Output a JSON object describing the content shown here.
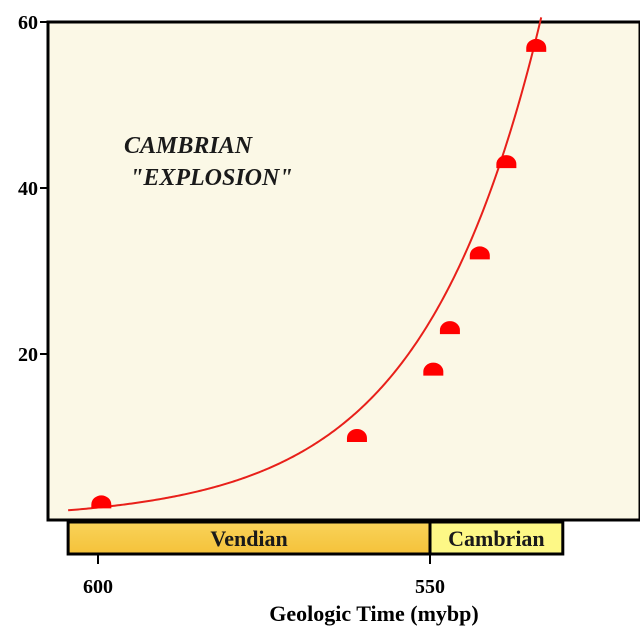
{
  "chart_data": {
    "type": "scatter",
    "title": "",
    "annotation": [
      "CAMBRIAN",
      "\"EXPLOSION\""
    ],
    "xlabel": "Geologic Time (mybp)",
    "ylabel": "",
    "x_reversed": true,
    "xlim": [
      604.5,
      530
    ],
    "ylim": [
      0,
      60
    ],
    "x_ticks": [
      600,
      550
    ],
    "x_tick_labels": [
      "600",
      "550"
    ],
    "y_ticks": [
      20,
      40,
      60
    ],
    "y_tick_labels": [
      "20",
      "40",
      "60"
    ],
    "grid": false,
    "legend": "none",
    "points": [
      {
        "x": 599.5,
        "y": 2
      },
      {
        "x": 561,
        "y": 10
      },
      {
        "x": 549.5,
        "y": 18
      },
      {
        "x": 547,
        "y": 23
      },
      {
        "x": 542.5,
        "y": 32
      },
      {
        "x": 538.5,
        "y": 43
      },
      {
        "x": 534,
        "y": 57
      }
    ],
    "trend_curve": "exponential fit",
    "periods": [
      {
        "label": "Vendian",
        "start": 604.5,
        "end": 550
      },
      {
        "label": "Cambrian",
        "start": 550,
        "end": 530
      }
    ],
    "colors": {
      "plot_background": "#fbf8e6",
      "points": "#ff0000",
      "curve": "#e8201a",
      "vendian": "#f5c23a",
      "cambrian": "#fdf886"
    }
  }
}
